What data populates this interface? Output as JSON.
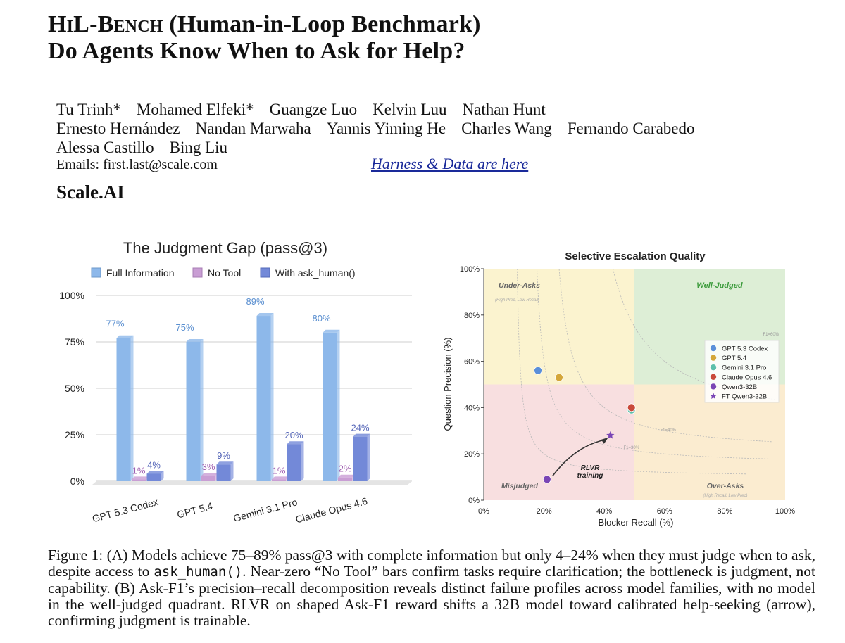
{
  "paper": {
    "title_line1_sc": "HiL-Bench",
    "title_line1_rest": " (Human-in-Loop Benchmark)",
    "title_line2": "Do Agents Know When to Ask for Help?",
    "authors": [
      [
        "Tu Trinh*",
        "Mohamed Elfeki*",
        "Guangze Luo",
        "Kelvin Luu",
        "Nathan Hunt"
      ],
      [
        "Ernesto Hernández",
        "Nandan Marwaha",
        "Yannis Yiming He",
        "Charles Wang",
        "Fernando Carabedo"
      ],
      [
        "Alessa Castillo",
        "Bing Liu"
      ]
    ],
    "emails": "Emails: first.last@scale.com",
    "harness_link": "Harness & Data are here",
    "org": "Scale.AI",
    "caption_a": "Figure 1: (A) Models achieve 75–89% pass@3 with complete information but only 4–24% when they must judge when to ask, despite access to ",
    "caption_code": "ask_human()",
    "caption_b": ". Near-zero “No Tool” bars confirm tasks require clarification; the bottleneck is judgment, not capability. (B) Ask-F1’s precision–recall decomposition reveals distinct failure profiles across model families, with no model in the well-judged quadrant. RLVR on shaped Ask-F1 reward shifts a 32B model toward calibrated help-seeking (arrow), confirming judgment is trainable."
  },
  "chart_data": [
    {
      "type": "bar",
      "title": "The Judgment Gap (pass@3)",
      "categories": [
        "GPT 5.3 Codex",
        "GPT 5.4",
        "Gemini 3.1 Pro",
        "Claude Opus 4.6"
      ],
      "series": [
        {
          "name": "Full Information",
          "values": [
            77,
            75,
            89,
            80
          ],
          "labels": [
            "77%",
            "75%",
            "89%",
            "80%"
          ],
          "color": "#8db8ea"
        },
        {
          "name": "No Tool",
          "values": [
            1,
            3,
            1,
            2
          ],
          "labels": [
            "1%",
            "3%",
            "1%",
            "2%"
          ],
          "color": "#c99ed4"
        },
        {
          "name": "With ask_human()",
          "values": [
            4,
            9,
            20,
            24
          ],
          "labels": [
            "4%",
            "9%",
            "20%",
            "24%"
          ],
          "color": "#7389d8"
        }
      ],
      "ylim": [
        0,
        100
      ],
      "yticks": [
        0,
        25,
        50,
        75,
        100
      ],
      "ytick_labels": [
        "0%",
        "25%",
        "50%",
        "75%",
        "100%"
      ],
      "legend": "top"
    },
    {
      "type": "scatter",
      "title": "Selective Escalation Quality",
      "xlabel": "Blocker Recall (%)",
      "ylabel": "Question Precision (%)",
      "xlim": [
        0,
        100
      ],
      "ylim": [
        0,
        100
      ],
      "xticks": [
        0,
        20,
        40,
        60,
        80,
        100
      ],
      "xtick_labels": [
        "0%",
        "20%",
        "40%",
        "60%",
        "80%",
        "100%"
      ],
      "yticks": [
        0,
        20,
        40,
        60,
        80,
        100
      ],
      "ytick_labels": [
        "0%",
        "20%",
        "40%",
        "60%",
        "80%",
        "100%"
      ],
      "quadrants": [
        {
          "label": "Under-Asks",
          "sublabel": "(High Prec, Low Recall)",
          "color": "#fbf3cf"
        },
        {
          "label": "Well-Judged",
          "sublabel": "",
          "color": "#ddeed6"
        },
        {
          "label": "Misjudged",
          "sublabel": "",
          "color": "#f8dfe0"
        },
        {
          "label": "Over-Asks",
          "sublabel": "(High Recall, Low Prec)",
          "color": "#fbecd0"
        }
      ],
      "f1_contours": [
        {
          "label": "F1=60%",
          "f1": 0.6
        },
        {
          "label": "F1=40%",
          "f1": 0.4
        },
        {
          "label": "F1=30%",
          "f1": 0.3
        },
        {
          "label": "",
          "f1": 0.2
        }
      ],
      "points": [
        {
          "name": "GPT 5.3 Codex",
          "x": 18,
          "y": 56,
          "color": "#5b8fd9",
          "marker": "circle"
        },
        {
          "name": "GPT 5.4",
          "x": 25,
          "y": 53,
          "color": "#d4a63a",
          "marker": "circle"
        },
        {
          "name": "Gemini 3.1 Pro",
          "x": 49,
          "y": 39,
          "color": "#5bbfaa",
          "marker": "circle"
        },
        {
          "name": "Claude Opus 4.6",
          "x": 49,
          "y": 40,
          "color": "#c94a3a",
          "marker": "circle"
        },
        {
          "name": "Qwen3-32B",
          "x": 21,
          "y": 9,
          "color": "#7a45b5",
          "marker": "circle"
        },
        {
          "name": "FT Qwen3-32B",
          "x": 42,
          "y": 28,
          "color": "#7a45b5",
          "marker": "star"
        }
      ],
      "annotation": {
        "text_line1": "RLVR",
        "text_line2": "training"
      },
      "legend": "right"
    }
  ]
}
